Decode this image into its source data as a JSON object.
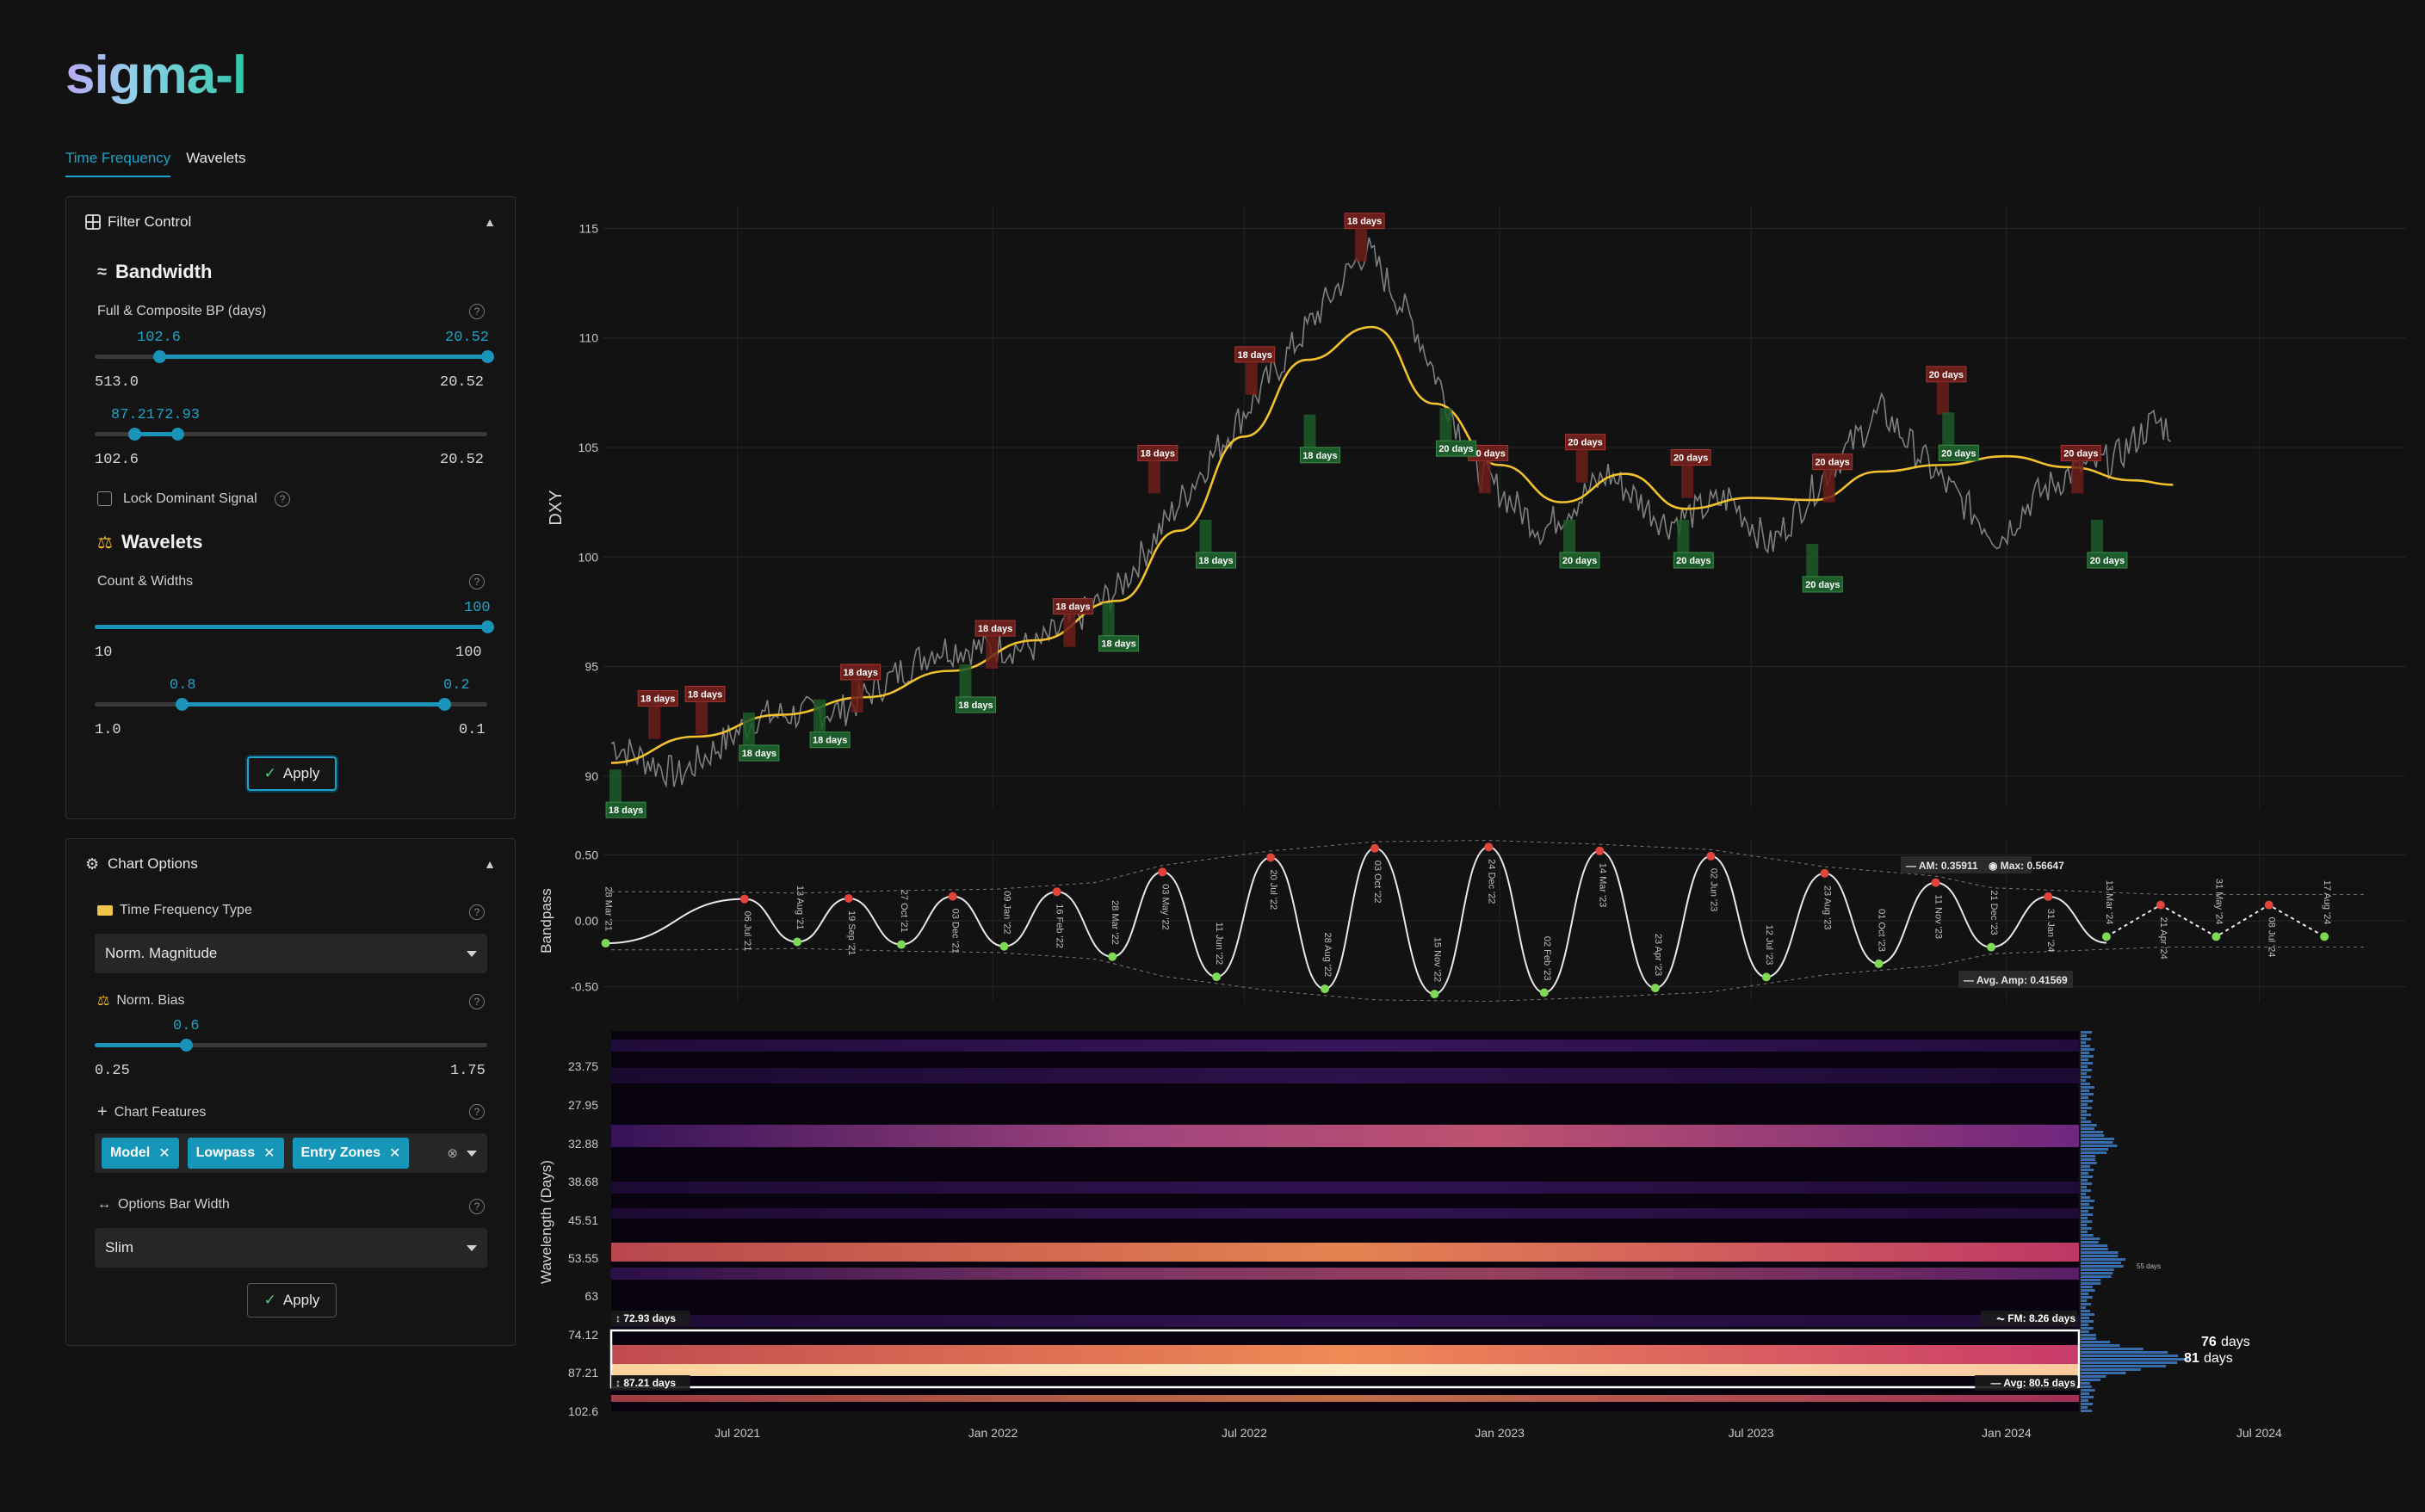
{
  "app": {
    "logo": "sigma-l"
  },
  "tabs": [
    {
      "label": "Time Frequency",
      "active": true
    },
    {
      "label": "Wavelets",
      "active": false
    }
  ],
  "filter_control": {
    "title": "Filter Control",
    "bandwidth": {
      "heading": "Bandwidth",
      "full_composite_label": "Full & Composite BP (days)",
      "slider1": {
        "low_value": "102.6",
        "high_value": "20.52",
        "min_label": "513.0",
        "max_label": "20.52",
        "low_frac": 0.169,
        "high_frac": 1.0
      },
      "slider2": {
        "low_value": "87.21",
        "high_value": "72.93",
        "min_label": "102.6",
        "max_label": "20.52",
        "low_frac": 0.1,
        "high_frac": 0.21
      },
      "lock_label": "Lock Dominant Signal",
      "lock_checked": false
    },
    "wavelets": {
      "heading": "Wavelets",
      "count_widths_label": "Count & Widths",
      "slider1": {
        "value": "100",
        "min_label": "10",
        "max_label": "100",
        "frac": 1.0
      },
      "slider2": {
        "low_value": "0.8",
        "high_value": "0.2",
        "min_label": "1.0",
        "max_label": "0.1",
        "low_frac": 0.222,
        "high_frac": 0.889
      }
    },
    "apply_label": "Apply"
  },
  "chart_options": {
    "title": "Chart Options",
    "tf_type_label": "Time Frequency Type",
    "tf_type_value": "Norm. Magnitude",
    "norm_bias_label": "Norm. Bias",
    "norm_bias_value": "0.6",
    "norm_bias_min": "0.25",
    "norm_bias_max": "1.75",
    "norm_bias_frac": 0.233,
    "features_label": "Chart Features",
    "features": [
      "Model",
      "Lowpass",
      "Entry Zones"
    ],
    "bar_width_label": "Options Bar Width",
    "bar_width_value": "Slim",
    "apply_label": "Apply"
  },
  "colors": {
    "accent": "#1aa4c9",
    "price": "#8c8c8c",
    "lowpass": "#f2c12e",
    "peak": "#e0443a",
    "trough": "#7ed957",
    "peak_box": "#6b1f1a",
    "trough_box": "#1d5c2a"
  },
  "chart_data": [
    {
      "type": "line",
      "ylabel": "DXY",
      "yticks": [
        90,
        95,
        100,
        105,
        110,
        115
      ],
      "ylim": [
        88.5,
        116
      ],
      "xlim": [
        "2021-04-01",
        "2024-09-20"
      ],
      "xticks": [
        "Jul 2021",
        "Jan 2022",
        "Jul 2022",
        "Jan 2023",
        "Jul 2023",
        "Jan 2024",
        "Jul 2024"
      ],
      "series": [
        {
          "x": [
            "2021-04-01",
            "2021-05-20",
            "2021-07-15",
            "2021-09-15",
            "2021-11-20",
            "2022-02-01",
            "2022-04-01",
            "2022-06-01",
            "2022-07-15",
            "2022-09-27",
            "2022-11-01",
            "2022-12-15",
            "2023-02-01",
            "2023-03-20",
            "2023-05-01",
            "2023-06-15",
            "2023-07-15",
            "2023-08-25",
            "2023-10-03",
            "2023-11-15",
            "2023-12-27",
            "2024-01-20",
            "2024-02-20",
            "2024-03-20",
            "2024-04-16",
            "2024-04-30"
          ],
          "y": [
            91.5,
            90.0,
            92.7,
            93.0,
            95.8,
            95.9,
            98.5,
            104.0,
            107.8,
            114.1,
            110.5,
            104.0,
            101.2,
            103.8,
            101.5,
            102.7,
            100.5,
            103.9,
            106.7,
            103.5,
            100.8,
            102.7,
            104.0,
            104.5,
            106.2,
            105.8
          ]
        },
        {
          "x": [
            "2021-04-01",
            "2021-06-01",
            "2021-08-01",
            "2021-10-01",
            "2021-12-01",
            "2022-02-01",
            "2022-04-01",
            "2022-05-15",
            "2022-07-01",
            "2022-08-15",
            "2022-10-01",
            "2022-11-15",
            "2023-01-01",
            "2023-02-15",
            "2023-04-01",
            "2023-05-15",
            "2023-07-01",
            "2023-08-15",
            "2023-10-01",
            "2023-11-15",
            "2024-01-01",
            "2024-02-15",
            "2024-04-01",
            "2024-04-30"
          ],
          "y": [
            90.6,
            91.8,
            92.8,
            93.6,
            94.8,
            96.2,
            98.0,
            101.2,
            105.5,
            109.0,
            110.5,
            107.0,
            104.2,
            102.5,
            103.8,
            102.2,
            102.7,
            102.6,
            103.9,
            104.2,
            104.6,
            104.1,
            103.5,
            103.3
          ]
        }
      ],
      "peaks": [
        {
          "x": "2021-05-04",
          "y": 92.8,
          "label": "18 days"
        },
        {
          "x": "2021-06-07",
          "y": 93.0,
          "label": "18 days"
        },
        {
          "x": "2021-09-27",
          "y": 94.0,
          "label": "18 days"
        },
        {
          "x": "2022-01-02",
          "y": 96.0,
          "label": "18 days"
        },
        {
          "x": "2022-02-27",
          "y": 97.0,
          "label": "18 days"
        },
        {
          "x": "2022-04-29",
          "y": 104.0,
          "label": "18 days"
        },
        {
          "x": "2022-07-08",
          "y": 108.5,
          "label": "18 days"
        },
        {
          "x": "2022-09-25",
          "y": 114.6,
          "label": "18 days"
        },
        {
          "x": "2022-12-23",
          "y": 104.0,
          "label": "20 days"
        },
        {
          "x": "2023-03-03",
          "y": 104.5,
          "label": "20 days"
        },
        {
          "x": "2023-05-18",
          "y": 103.8,
          "label": "20 days"
        },
        {
          "x": "2023-08-28",
          "y": 103.6,
          "label": "20 days"
        },
        {
          "x": "2023-11-18",
          "y": 107.6,
          "label": "20 days"
        },
        {
          "x": "2024-02-23",
          "y": 104.0,
          "label": "20 days"
        }
      ],
      "troughs": [
        {
          "x": "2021-04-06",
          "y": 89.2,
          "label": "18 days"
        },
        {
          "x": "2021-07-11",
          "y": 91.8,
          "label": "18 days"
        },
        {
          "x": "2021-08-31",
          "y": 92.4,
          "label": "18 days"
        },
        {
          "x": "2021-12-14",
          "y": 94.0,
          "label": "18 days"
        },
        {
          "x": "2022-03-27",
          "y": 96.8,
          "label": "18 days"
        },
        {
          "x": "2022-06-05",
          "y": 100.6,
          "label": "18 days"
        },
        {
          "x": "2022-08-19",
          "y": 105.4,
          "label": "18 days"
        },
        {
          "x": "2022-11-25",
          "y": 105.7,
          "label": "20 days"
        },
        {
          "x": "2023-02-22",
          "y": 100.6,
          "label": "20 days"
        },
        {
          "x": "2023-05-15",
          "y": 100.6,
          "label": "20 days"
        },
        {
          "x": "2023-08-16",
          "y": 99.5,
          "label": "20 days"
        },
        {
          "x": "2023-11-22",
          "y": 105.5,
          "label": "20 days"
        },
        {
          "x": "2024-03-08",
          "y": 100.6,
          "label": "20 days"
        }
      ]
    },
    {
      "type": "line",
      "ylabel": "Bandpass",
      "yticks": [
        -0.5,
        0.0,
        0.5
      ],
      "ylim": [
        -0.62,
        0.62
      ],
      "xlim": [
        "2021-04-01",
        "2024-09-20"
      ],
      "annotations": {
        "am": "AM: 0.35911",
        "max": "Max: 0.56647",
        "avg_amp": "Avg. Amp: 0.41569"
      },
      "peak_dates": [
        "2021-06-02",
        "2021-08-13",
        "2021-10-27",
        "2022-01-04",
        "2022-03-16",
        "2022-05-03",
        "2022-07-20",
        "2022-10-03",
        "2022-12-24",
        "2023-03-14",
        "2023-06-02",
        "2023-08-23",
        "2023-11-11",
        "2023-12-21",
        "2024-04-22",
        "2024-05-31"
      ],
      "peak_values": [
        0.17,
        0.16,
        0.18,
        0.19,
        0.24,
        0.37,
        0.48,
        0.55,
        0.56,
        0.53,
        0.49,
        0.36,
        0.29,
        0.2,
        0.15,
        0.12
      ],
      "date_labels": [
        "28 Mar '21",
        "06 Jul '21",
        "13 Aug '21",
        "19 Sep '21",
        "27 Oct '21",
        "03 Dec '21",
        "09 Jan '22",
        "16 Feb '22",
        "28 Mar '22",
        "03 May '22",
        "11 Jun '22",
        "20 Jul '22",
        "28 Aug '22",
        "03 Oct '22",
        "15 Nov '22",
        "24 Dec '22",
        "02 Feb '23",
        "14 Mar '23",
        "23 Apr '23",
        "02 Jun '23",
        "12 Jul '23",
        "23 Aug '23",
        "01 Oct '23",
        "11 Nov '23",
        "21 Dec '23",
        "31 Jan '24",
        "13 Mar '24",
        "21 Apr '24",
        "31 May '24",
        "08 Jul '24",
        "17 Aug '24"
      ]
    },
    {
      "type": "heatmap",
      "ylabel": "Wavelength (Days)",
      "yticks": [
        "23.75",
        "27.95",
        "32.88",
        "38.68",
        "45.51",
        "53.55",
        "63",
        "74.12",
        "87.21",
        "102.6"
      ],
      "band_labels": {
        "upper": "72.93 days",
        "lower": "87.21 days",
        "fm": "FM: 8.26 days",
        "avg": "Avg: 80.5 days"
      },
      "histogram_labels": {
        "peak1": "76",
        "peak2": "81",
        "unit": "days",
        "small": "55 days"
      }
    }
  ]
}
